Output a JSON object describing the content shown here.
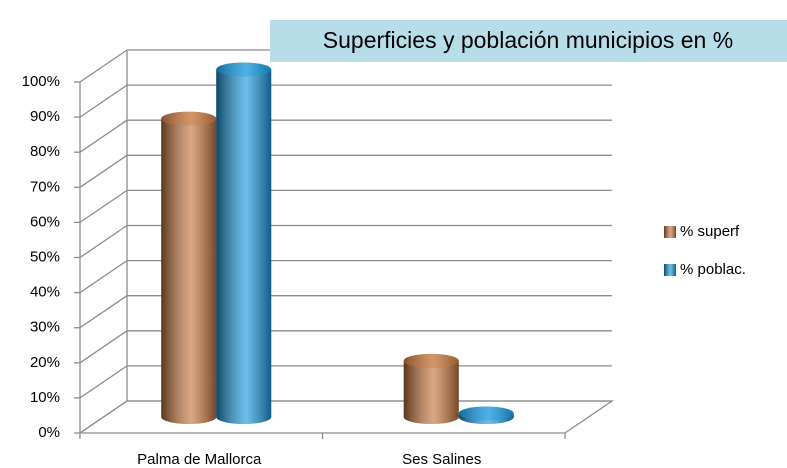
{
  "chart_data": {
    "type": "bar3d",
    "title": "Superficies y población municipios en %",
    "categories": [
      "Palma de Mallorca",
      "Ses Salines"
    ],
    "series": [
      {
        "name": "% superf",
        "color": "#c87941",
        "values": [
          85,
          16
        ]
      },
      {
        "name": "% poblac.",
        "color": "#1e9be0",
        "values": [
          99,
          1
        ]
      }
    ],
    "ylim": [
      0,
      100
    ],
    "yticks": [
      {
        "value": 0,
        "label": "0%"
      },
      {
        "value": 10,
        "label": "10%"
      },
      {
        "value": 20,
        "label": "20%"
      },
      {
        "value": 30,
        "label": "30%"
      },
      {
        "value": 40,
        "label": "40%"
      },
      {
        "value": 50,
        "label": "50%"
      },
      {
        "value": 60,
        "label": "60%"
      },
      {
        "value": 70,
        "label": "70%"
      },
      {
        "value": 80,
        "label": "80%"
      },
      {
        "value": 90,
        "label": "90%"
      },
      {
        "value": 100,
        "label": "100%"
      }
    ],
    "grid": true,
    "legend": "right"
  }
}
